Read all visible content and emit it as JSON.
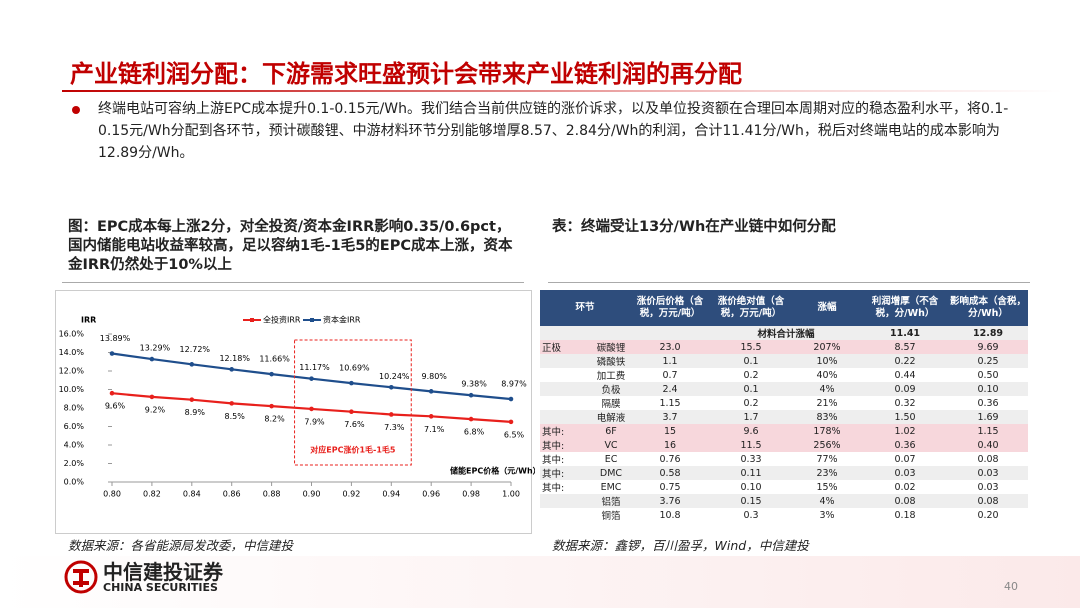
{
  "header": {
    "title": "产业链利润分配：下游需求旺盛预计会带来产业链利润的再分配"
  },
  "bullet": "终端电站可容纳上游EPC成本提升0.1-0.15元/Wh。我们结合当前供应链的涨价诉求，以及单位投资额在合理回本周期对应的稳态盈利水平，将0.1-0.15元/Wh分配到各环节，预计碳酸锂、中游材料环节分别能够增厚8.57、2.84分/Wh的利润，合计11.41分/Wh，税后对终端电站的成本影响为12.89分/Wh。",
  "figure": {
    "caption": "图：EPC成本每上涨2分，对全投资/资本金IRR影响0.35/0.6pct，国内储能电站收益率较高，足以容纳1毛-1毛5的EPC成本上涨，资本金IRR仍然处于10%以上",
    "source": "数据来源：各省能源局发改委，中信建投"
  },
  "chart_data": {
    "type": "line",
    "y_label": "IRR",
    "x_label": "储能EPC价格（元/Wh）",
    "annotation": "对应EPC涨价1毛-1毛5",
    "x": [
      0.8,
      0.82,
      0.84,
      0.86,
      0.88,
      0.9,
      0.92,
      0.94,
      0.96,
      0.98,
      1.0
    ],
    "series": [
      {
        "name": "全投资IRR",
        "color": "#e8201c",
        "values": [
          9.6,
          9.2,
          8.9,
          8.5,
          8.2,
          7.9,
          7.6,
          7.3,
          7.1,
          6.8,
          6.5
        ],
        "value_labels": [
          "9.6%",
          "9.2%",
          "8.9%",
          "8.5%",
          "8.2%",
          "7.9%",
          "7.6%",
          "7.3%",
          "7.1%",
          "6.8%",
          "6.5%"
        ]
      },
      {
        "name": "资本金IRR",
        "color": "#1f4e8c",
        "values": [
          13.89,
          13.29,
          12.72,
          12.18,
          11.66,
          11.17,
          10.69,
          10.24,
          9.8,
          9.38,
          8.97
        ],
        "value_labels": [
          "13.89%",
          "13.29%",
          "12.72%",
          "12.18%",
          "11.66%",
          "11.17%",
          "10.69%",
          "10.24%",
          "9.80%",
          "9.38%",
          "8.97%"
        ]
      }
    ],
    "xlim": [
      0.8,
      1.0
    ],
    "ylim": [
      0,
      16
    ],
    "xticks": [
      {
        "value": 0.8,
        "label": "0.80"
      },
      {
        "value": 0.82,
        "label": "0.82"
      },
      {
        "value": 0.84,
        "label": "0.84"
      },
      {
        "value": 0.86,
        "label": "0.86"
      },
      {
        "value": 0.88,
        "label": "0.88"
      },
      {
        "value": 0.9,
        "label": "0.90"
      },
      {
        "value": 0.92,
        "label": "0.92"
      },
      {
        "value": 0.94,
        "label": "0.94"
      },
      {
        "value": 0.96,
        "label": "0.96"
      },
      {
        "value": 0.98,
        "label": "0.98"
      },
      {
        "value": 1.0,
        "label": "1.00"
      }
    ],
    "yticks": [
      {
        "value": 0,
        "label": "0.0%"
      },
      {
        "value": 2,
        "label": "2.0%"
      },
      {
        "value": 4,
        "label": "4.0%"
      },
      {
        "value": 6,
        "label": "6.0%"
      },
      {
        "value": 8,
        "label": "8.0%"
      },
      {
        "value": 10,
        "label": "10.0%"
      },
      {
        "value": 12,
        "label": "12.0%"
      },
      {
        "value": 14,
        "label": "14.0%"
      },
      {
        "value": 16,
        "label": "16.0%"
      }
    ]
  },
  "table": {
    "caption": "表：终端受让13分/Wh在产业链中如何分配",
    "source": "数据来源：鑫锣，百川盈孚，Wind，中信建投",
    "columns": [
      "环节",
      "涨价后价格（含税，万元/吨）",
      "涨价绝对值（含税，万元/吨）",
      "涨幅",
      "利润增厚（不含税，分/Wh）",
      "影响成本（含税，分/Wh）"
    ],
    "total": {
      "label": "材料合计涨幅",
      "values": [
        "11.41",
        "12.89"
      ]
    },
    "rows": [
      {
        "group": "正极",
        "name": "碳酸锂",
        "values": [
          "23.0",
          "15.5",
          "207%",
          "8.57",
          "9.69"
        ]
      },
      {
        "name": "磷酸铁",
        "values": [
          "1.1",
          "0.1",
          "10%",
          "0.22",
          "0.25"
        ]
      },
      {
        "name": "加工费",
        "values": [
          "0.7",
          "0.2",
          "40%",
          "0.44",
          "0.50"
        ]
      },
      {
        "name": "负极",
        "values": [
          "2.4",
          "0.1",
          "4%",
          "0.09",
          "0.10"
        ]
      },
      {
        "name": "隔膜",
        "values": [
          "1.15",
          "0.2",
          "21%",
          "0.32",
          "0.36"
        ]
      },
      {
        "name": "电解液",
        "values": [
          "3.7",
          "1.7",
          "83%",
          "1.50",
          "1.69"
        ]
      },
      {
        "group": "其中:",
        "name": "6F",
        "values": [
          "15",
          "9.6",
          "178%",
          "1.02",
          "1.15"
        ]
      },
      {
        "group": "其中:",
        "name": "VC",
        "values": [
          "16",
          "11.5",
          "256%",
          "0.36",
          "0.40"
        ]
      },
      {
        "group": "其中:",
        "name": "EC",
        "values": [
          "0.76",
          "0.33",
          "77%",
          "0.07",
          "0.08"
        ]
      },
      {
        "group": "其中:",
        "name": "DMC",
        "values": [
          "0.58",
          "0.11",
          "23%",
          "0.03",
          "0.03"
        ]
      },
      {
        "group": "其中:",
        "name": "EMC",
        "values": [
          "0.75",
          "0.10",
          "15%",
          "0.02",
          "0.03"
        ]
      },
      {
        "name": "铝箔",
        "values": [
          "3.76",
          "0.15",
          "4%",
          "0.08",
          "0.08"
        ]
      },
      {
        "name": "铜箔",
        "values": [
          "10.8",
          "0.3",
          "3%",
          "0.18",
          "0.20"
        ]
      }
    ]
  },
  "footer": {
    "logo": "中信建投证券",
    "logo_en": "CHINA SECURITIES",
    "page": "40"
  }
}
